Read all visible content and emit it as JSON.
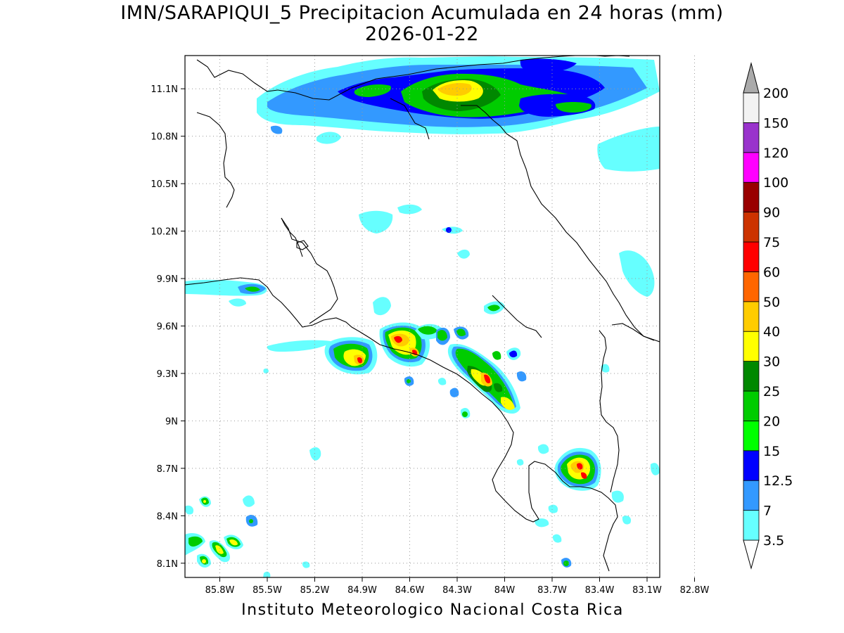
{
  "title": {
    "line1": "IMN/SARAPIQUI_5 Precipitacion Acumulada en 24 horas (mm)",
    "line2": "2026-01-22"
  },
  "credit": "Instituto Meteorologico Nacional Costa Rica",
  "map": {
    "lon_range": [
      -86.02,
      -83.02
    ],
    "lat_range": [
      8.01,
      11.31
    ],
    "lon_ticks": [
      {
        "value": -85.8,
        "label": "85.8W"
      },
      {
        "value": -85.5,
        "label": "85.5W"
      },
      {
        "value": -85.2,
        "label": "85.2W"
      },
      {
        "value": -84.9,
        "label": "84.9W"
      },
      {
        "value": -84.6,
        "label": "84.6W"
      },
      {
        "value": -84.3,
        "label": "84.3W"
      },
      {
        "value": -84.0,
        "label": "84W"
      },
      {
        "value": -83.7,
        "label": "83.7W"
      },
      {
        "value": -83.4,
        "label": "83.4W"
      },
      {
        "value": -83.1,
        "label": "83.1W"
      },
      {
        "value": -82.8,
        "label": "82.8W"
      }
    ],
    "lat_ticks": [
      {
        "value": 11.1,
        "label": "11.1N"
      },
      {
        "value": 10.8,
        "label": "10.8N"
      },
      {
        "value": 10.5,
        "label": "10.5N"
      },
      {
        "value": 10.2,
        "label": "10.2N"
      },
      {
        "value": 9.9,
        "label": "9.9N"
      },
      {
        "value": 9.6,
        "label": "9.6N"
      },
      {
        "value": 9.3,
        "label": "9.3N"
      },
      {
        "value": 9.0,
        "label": "9N"
      },
      {
        "value": 8.7,
        "label": "8.7N"
      },
      {
        "value": 8.4,
        "label": "8.4N"
      },
      {
        "value": 8.1,
        "label": "8.1N"
      }
    ],
    "grid": "dotted"
  },
  "colorbar": {
    "levels": [
      {
        "label": "3.5",
        "color": "#66ffff"
      },
      {
        "label": "7",
        "color": "#3399ff"
      },
      {
        "label": "12.5",
        "color": "#0000ff"
      },
      {
        "label": "15",
        "color": "#00ff00"
      },
      {
        "label": "20",
        "color": "#00cc00"
      },
      {
        "label": "25",
        "color": "#008800"
      },
      {
        "label": "30",
        "color": "#ffff00"
      },
      {
        "label": "40",
        "color": "#ffcc00"
      },
      {
        "label": "50",
        "color": "#ff6600"
      },
      {
        "label": "60",
        "color": "#ff0000"
      },
      {
        "label": "75",
        "color": "#cc3300"
      },
      {
        "label": "90",
        "color": "#990000"
      },
      {
        "label": "100",
        "color": "#ff00ff"
      },
      {
        "label": "120",
        "color": "#9933cc"
      },
      {
        "label": "150",
        "color": "#f2f2f2"
      },
      {
        "label": "200",
        "color": "#aaaaaa"
      }
    ],
    "below_color": "#ffffff"
  },
  "colors": {
    "coast": "#000000",
    "grid": "#999999"
  }
}
